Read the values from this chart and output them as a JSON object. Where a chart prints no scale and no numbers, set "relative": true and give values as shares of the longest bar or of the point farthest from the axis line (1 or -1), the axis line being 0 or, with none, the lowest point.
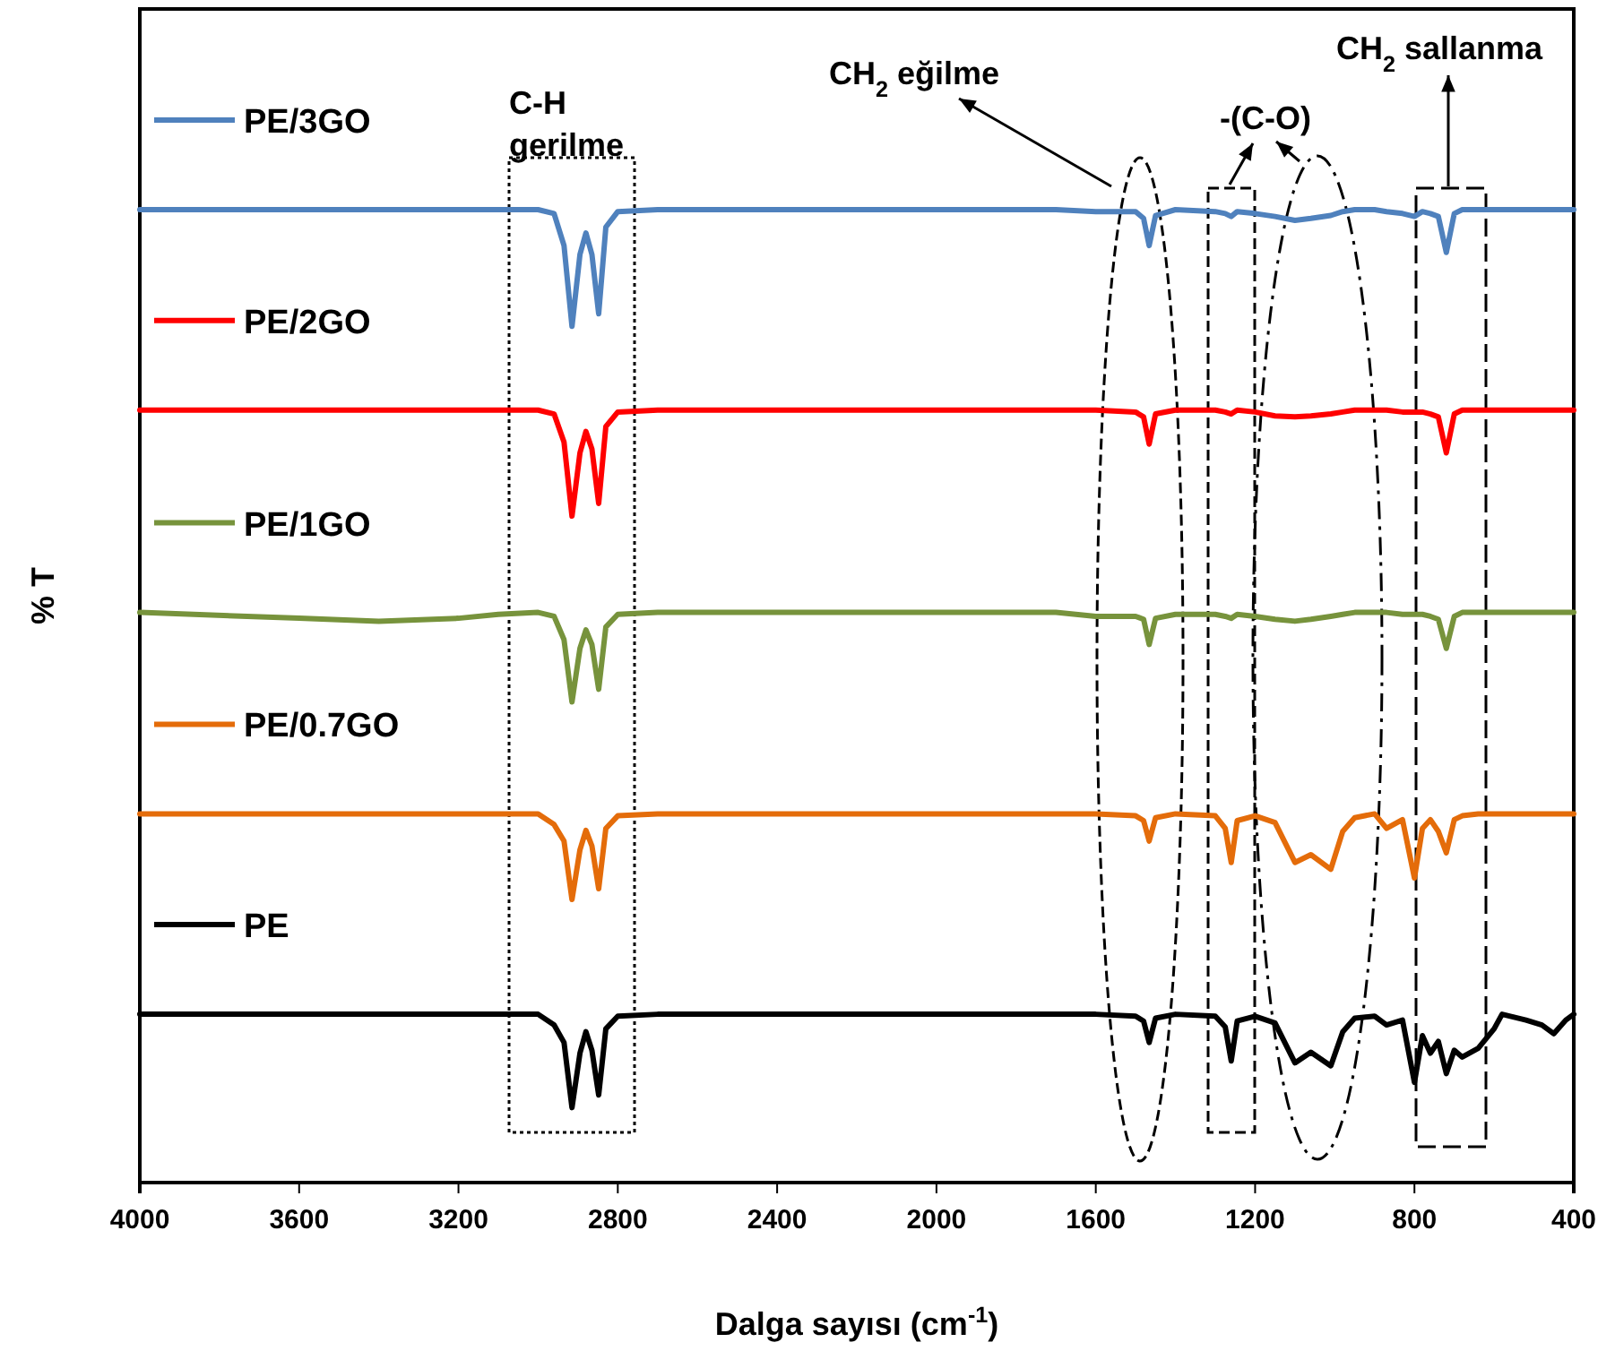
{
  "chart_data": {
    "type": "line",
    "relative": true,
    "xlabel": "Dalga sayısı (cm$^{-1}$)",
    "ylabel": "% T",
    "xlim": [
      4000,
      400
    ],
    "xticks": [
      4000,
      3600,
      3200,
      2800,
      2400,
      2000,
      1600,
      1200,
      800,
      400
    ],
    "legend": "left",
    "grid": false,
    "marker": "none",
    "line_style": "solid",
    "x": [
      4000,
      3600,
      3400,
      3200,
      3100,
      3000,
      2960,
      2935,
      2915,
      2895,
      2880,
      2865,
      2848,
      2830,
      2800,
      2700,
      2400,
      2000,
      1700,
      1600,
      1500,
      1480,
      1466,
      1450,
      1400,
      1300,
      1275,
      1260,
      1245,
      1200,
      1150,
      1100,
      1060,
      1010,
      980,
      950,
      900,
      870,
      830,
      800,
      780,
      760,
      740,
      720,
      700,
      680,
      640,
      600,
      580,
      520,
      480,
      450,
      420,
      400
    ],
    "series": [
      {
        "name": "PE/3GO",
        "color": "#4f81bd",
        "values": [
          1,
          1,
          1,
          1,
          1,
          1,
          0.996,
          0.963,
          0.88,
          0.954,
          0.976,
          0.954,
          0.893,
          0.982,
          0.998,
          1,
          1,
          1,
          1,
          0.998,
          0.998,
          0.991,
          0.963,
          0.994,
          1,
          0.998,
          0.996,
          0.993,
          0.998,
          0.996,
          0.993,
          0.989,
          0.991,
          0.994,
          0.998,
          1,
          1,
          0.998,
          0.996,
          0.993,
          0.998,
          0.996,
          0.993,
          0.956,
          0.996,
          1,
          1,
          1,
          1,
          1,
          1,
          1,
          1,
          1
        ]
      },
      {
        "name": "PE/2GO",
        "color": "#ff0000",
        "values": [
          0.794,
          0.794,
          0.794,
          0.794,
          0.794,
          0.794,
          0.79,
          0.761,
          0.685,
          0.75,
          0.772,
          0.754,
          0.698,
          0.777,
          0.792,
          0.794,
          0.794,
          0.794,
          0.794,
          0.794,
          0.792,
          0.787,
          0.759,
          0.79,
          0.794,
          0.794,
          0.792,
          0.79,
          0.794,
          0.792,
          0.788,
          0.787,
          0.788,
          0.79,
          0.792,
          0.794,
          0.794,
          0.794,
          0.792,
          0.792,
          0.792,
          0.79,
          0.787,
          0.75,
          0.79,
          0.794,
          0.794,
          0.794,
          0.794,
          0.794,
          0.794,
          0.794,
          0.794,
          0.794
        ]
      },
      {
        "name": "PE/1GO",
        "color": "#77933c",
        "values": [
          0.586,
          0.58,
          0.577,
          0.58,
          0.584,
          0.586,
          0.582,
          0.558,
          0.494,
          0.549,
          0.568,
          0.553,
          0.507,
          0.571,
          0.584,
          0.586,
          0.586,
          0.586,
          0.586,
          0.582,
          0.582,
          0.579,
          0.553,
          0.58,
          0.584,
          0.584,
          0.582,
          0.58,
          0.584,
          0.582,
          0.579,
          0.577,
          0.579,
          0.582,
          0.584,
          0.586,
          0.586,
          0.586,
          0.584,
          0.584,
          0.584,
          0.582,
          0.579,
          0.549,
          0.582,
          0.586,
          0.586,
          0.586,
          0.586,
          0.586,
          0.586,
          0.586,
          0.586,
          0.586
        ]
      },
      {
        "name": "PE/0.7GO",
        "color": "#e46c0a",
        "values": [
          0.379,
          0.379,
          0.379,
          0.379,
          0.379,
          0.379,
          0.368,
          0.351,
          0.291,
          0.342,
          0.362,
          0.346,
          0.302,
          0.364,
          0.377,
          0.379,
          0.379,
          0.379,
          0.379,
          0.379,
          0.377,
          0.372,
          0.351,
          0.375,
          0.379,
          0.377,
          0.364,
          0.329,
          0.372,
          0.377,
          0.37,
          0.329,
          0.337,
          0.322,
          0.361,
          0.375,
          0.379,
          0.364,
          0.373,
          0.313,
          0.364,
          0.373,
          0.361,
          0.339,
          0.373,
          0.377,
          0.379,
          0.379,
          0.379,
          0.379,
          0.379,
          0.379,
          0.379,
          0.379
        ]
      },
      {
        "name": "PE",
        "color": "#000000",
        "values": [
          0.173,
          0.173,
          0.173,
          0.173,
          0.173,
          0.173,
          0.162,
          0.144,
          0.077,
          0.133,
          0.155,
          0.136,
          0.09,
          0.158,
          0.171,
          0.173,
          0.173,
          0.173,
          0.173,
          0.173,
          0.171,
          0.166,
          0.144,
          0.169,
          0.173,
          0.171,
          0.16,
          0.125,
          0.166,
          0.171,
          0.164,
          0.123,
          0.134,
          0.12,
          0.155,
          0.169,
          0.171,
          0.162,
          0.167,
          0.103,
          0.151,
          0.133,
          0.145,
          0.112,
          0.136,
          0.129,
          0.138,
          0.158,
          0.173,
          0.167,
          0.162,
          0.153,
          0.167,
          0.173
        ]
      }
    ],
    "annotations": [
      "C-H gerilme",
      "CH$_{2}$ eğilme",
      "-(C-O)",
      "CH$_{2}$ sallanma"
    ]
  }
}
